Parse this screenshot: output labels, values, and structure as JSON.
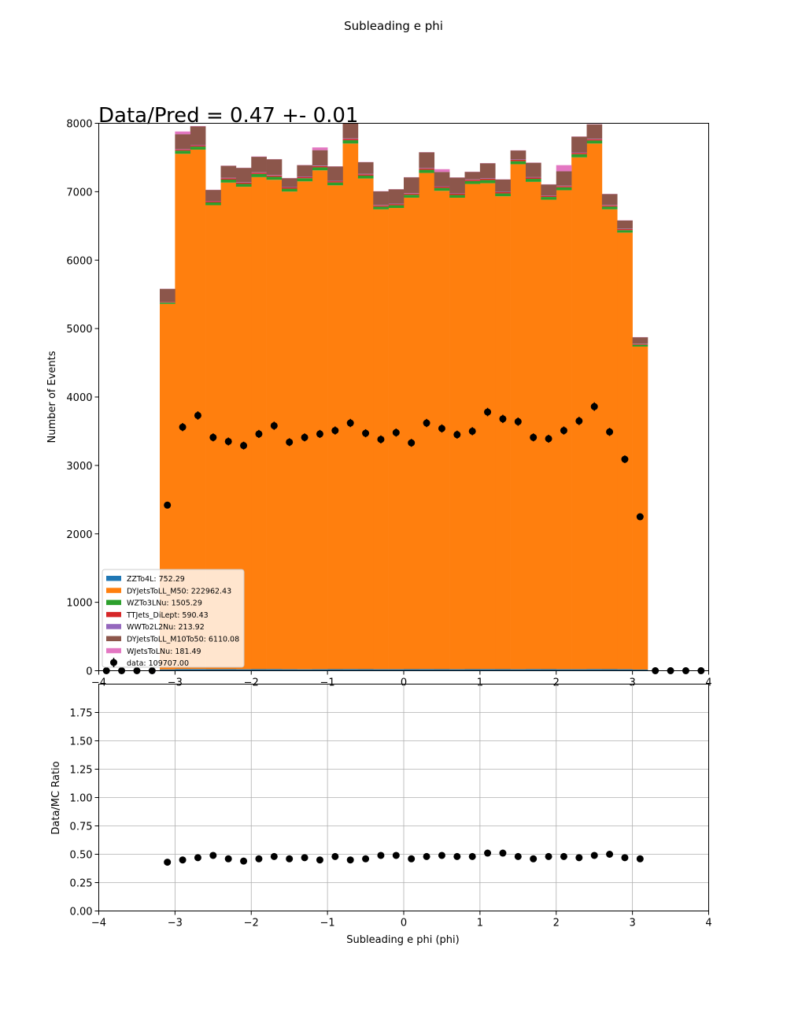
{
  "figure": {
    "suptitle": "Subleading e phi",
    "annotation": "Data/Pred = 0.47 +- 0.01"
  },
  "chart_data": [
    {
      "type": "bar",
      "subtype": "stacked-histogram",
      "ylabel": "Number of Events",
      "xlim": [
        -4,
        4
      ],
      "ylim": [
        0,
        8000
      ],
      "xticks": [
        "−4",
        "−3",
        "−2",
        "−1",
        "0",
        "1",
        "2",
        "3",
        "4"
      ],
      "yticks": [
        "0",
        "1000",
        "2000",
        "3000",
        "4000",
        "5000",
        "6000",
        "7000",
        "8000"
      ],
      "grid": false,
      "legend_location": "lower-left",
      "bin_edges": [
        -3.2,
        -3.0,
        -2.8,
        -2.6,
        -2.4,
        -2.2,
        -2.0,
        -1.8,
        -1.6,
        -1.4,
        -1.2,
        -1.0,
        -0.8,
        -0.6,
        -0.4,
        -0.2,
        0.0,
        0.2,
        0.4,
        0.6,
        0.8,
        1.0,
        1.2,
        1.4,
        1.6,
        1.8,
        2.0,
        2.2,
        2.4,
        2.6,
        2.8,
        3.0,
        3.2
      ],
      "series": [
        {
          "name": "ZZTo4L: 752.29",
          "color": "#1f77b4",
          "values": [
            20,
            24,
            25,
            23,
            23,
            22,
            23,
            24,
            22,
            21,
            22,
            23,
            24,
            23,
            22,
            22,
            23,
            24,
            23,
            22,
            23,
            24,
            23,
            22,
            24,
            23,
            22,
            22,
            24,
            23,
            22,
            17
          ]
        },
        {
          "name": "DYJetsToLL_M50: 222962.43",
          "color": "#ff7f0e",
          "values": [
            5340,
            7530,
            7590,
            6780,
            7110,
            7050,
            7190,
            7150,
            6980,
            7130,
            7290,
            7070,
            7680,
            7170,
            6720,
            6740,
            6890,
            7250,
            6990,
            6890,
            7090,
            7100,
            6910,
            7380,
            7120,
            6860,
            7000,
            7480,
            7680,
            6720,
            6380,
            4720
          ]
        },
        {
          "name": "WZTo3LNu: 1505.29",
          "color": "#2ca02c",
          "values": [
            20,
            46,
            44,
            40,
            44,
            42,
            46,
            44,
            42,
            46,
            44,
            42,
            48,
            42,
            40,
            40,
            42,
            46,
            42,
            40,
            42,
            46,
            42,
            44,
            44,
            40,
            42,
            46,
            44,
            40,
            36,
            26
          ]
        },
        {
          "name": "TTJets_DiLept: 590.43",
          "color": "#d62728",
          "values": [
            8,
            18,
            18,
            17,
            19,
            18,
            19,
            19,
            18,
            19,
            19,
            18,
            20,
            19,
            17,
            17,
            18,
            19,
            18,
            18,
            18,
            19,
            18,
            19,
            18,
            17,
            18,
            19,
            19,
            17,
            16,
            11
          ]
        },
        {
          "name": "WWTo2L2Nu: 213.92",
          "color": "#9467bd",
          "values": [
            3,
            7,
            7,
            6,
            7,
            6,
            7,
            7,
            6,
            7,
            7,
            6,
            7,
            7,
            6,
            6,
            7,
            7,
            6,
            6,
            7,
            7,
            6,
            7,
            7,
            6,
            6,
            7,
            7,
            6,
            5,
            4
          ]
        },
        {
          "name": "DYJetsToLL_M10To50: 6110.08",
          "color": "#8c564b",
          "values": [
            190,
            215,
            270,
            160,
            175,
            210,
            225,
            230,
            130,
            165,
            225,
            210,
            240,
            170,
            200,
            210,
            230,
            230,
            210,
            230,
            110,
            220,
            180,
            130,
            210,
            160,
            210,
            230,
            210,
            160,
            120,
            95
          ]
        },
        {
          "name": "WJetsToLNu: 181.49",
          "color": "#e377c2",
          "values": [
            2,
            40,
            5,
            3,
            3,
            3,
            5,
            3,
            3,
            3,
            40,
            3,
            5,
            3,
            3,
            3,
            3,
            3,
            40,
            3,
            3,
            3,
            3,
            3,
            3,
            3,
            90,
            3,
            3,
            3,
            3,
            3
          ]
        }
      ],
      "data_series": {
        "name": "data: 109707.00",
        "x": [
          -3.9,
          -3.7,
          -3.5,
          -3.3,
          -3.1,
          -2.9,
          -2.7,
          -2.5,
          -2.3,
          -2.1,
          -1.9,
          -1.7,
          -1.5,
          -1.3,
          -1.1,
          -0.9,
          -0.7,
          -0.5,
          -0.3,
          -0.1,
          0.1,
          0.3,
          0.5,
          0.7,
          0.9,
          1.1,
          1.3,
          1.5,
          1.7,
          1.9,
          2.1,
          2.3,
          2.5,
          2.7,
          2.9,
          3.1,
          3.3,
          3.5,
          3.7,
          3.9
        ],
        "y": [
          0,
          0,
          0,
          0,
          2420,
          3560,
          3730,
          3410,
          3350,
          3290,
          3460,
          3580,
          3340,
          3410,
          3460,
          3510,
          3620,
          3470,
          3380,
          3480,
          3330,
          3620,
          3540,
          3450,
          3500,
          3780,
          3680,
          3640,
          3410,
          3390,
          3510,
          3650,
          3860,
          3490,
          3090,
          2250,
          0,
          0,
          0,
          0
        ],
        "color": "#000000"
      }
    },
    {
      "type": "scatter",
      "xlabel": "Subleading e phi (phi)",
      "ylabel": "Data/MC Ratio",
      "xlim": [
        -4,
        4
      ],
      "ylim": [
        0,
        2
      ],
      "xticks": [
        "−4",
        "−3",
        "−2",
        "−1",
        "0",
        "1",
        "2",
        "3",
        "4"
      ],
      "yticks": [
        "0.00",
        "0.25",
        "0.50",
        "0.75",
        "1.00",
        "1.25",
        "1.50",
        "1.75"
      ],
      "grid": true,
      "series": [
        {
          "color": "#000000",
          "x": [
            -3.1,
            -2.9,
            -2.7,
            -2.5,
            -2.3,
            -2.1,
            -1.9,
            -1.7,
            -1.5,
            -1.3,
            -1.1,
            -0.9,
            -0.7,
            -0.5,
            -0.3,
            -0.1,
            0.1,
            0.3,
            0.5,
            0.7,
            0.9,
            1.1,
            1.3,
            1.5,
            1.7,
            1.9,
            2.1,
            2.3,
            2.5,
            2.7,
            2.9,
            3.1
          ],
          "y": [
            0.43,
            0.45,
            0.47,
            0.49,
            0.46,
            0.44,
            0.46,
            0.48,
            0.46,
            0.47,
            0.45,
            0.48,
            0.45,
            0.46,
            0.49,
            0.49,
            0.46,
            0.48,
            0.49,
            0.48,
            0.48,
            0.51,
            0.51,
            0.48,
            0.46,
            0.48,
            0.48,
            0.47,
            0.49,
            0.5,
            0.47,
            0.46
          ]
        }
      ]
    }
  ]
}
